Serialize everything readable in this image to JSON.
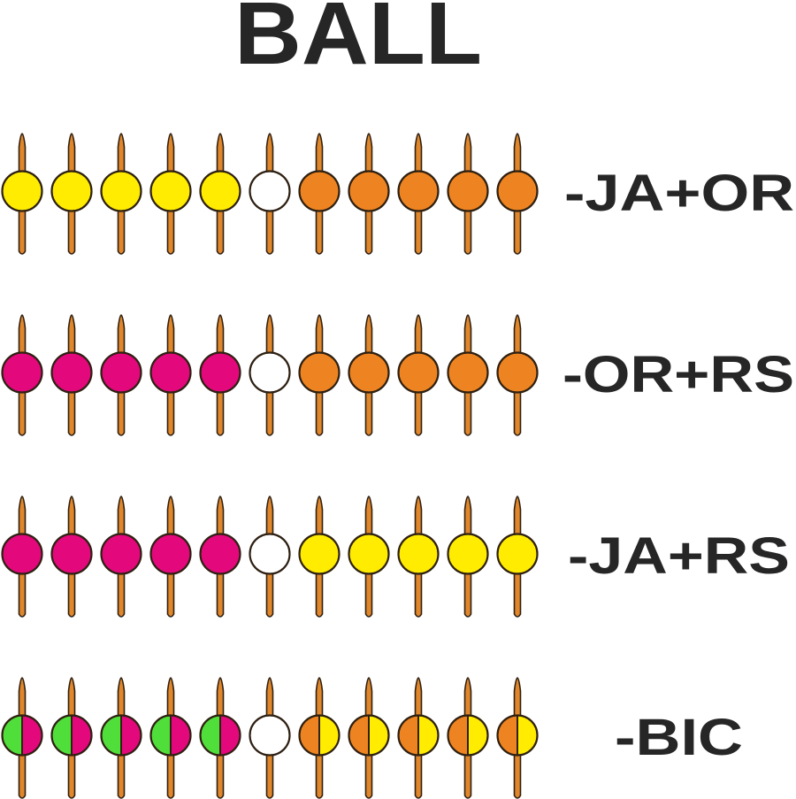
{
  "title": "BALL",
  "colors": {
    "Y": "#FFEC00",
    "O": "#EE8421",
    "M": "#E4087D",
    "W": "#FFFFFF",
    "G": "#50DF3A",
    "stick": "#E0862B",
    "outline": "#2E2012",
    "text": "#262626"
  },
  "rows": [
    {
      "label": "-JA+OR",
      "pins": [
        "Y",
        "Y",
        "Y",
        "Y",
        "Y",
        "W",
        "O",
        "O",
        "O",
        "O",
        "O"
      ]
    },
    {
      "label": "-OR+RS",
      "pins": [
        "M",
        "M",
        "M",
        "M",
        "M",
        "W",
        "O",
        "O",
        "O",
        "O",
        "O"
      ]
    },
    {
      "label": "-JA+RS",
      "pins": [
        "M",
        "M",
        "M",
        "M",
        "M",
        "W",
        "Y",
        "Y",
        "Y",
        "Y",
        "Y"
      ]
    },
    {
      "label": "-BIC",
      "pins": [
        "G|M",
        "G|M",
        "G|M",
        "G|M",
        "G|M",
        "W",
        "O|Y",
        "O|Y",
        "O|Y",
        "O|Y",
        "O|Y"
      ]
    }
  ]
}
